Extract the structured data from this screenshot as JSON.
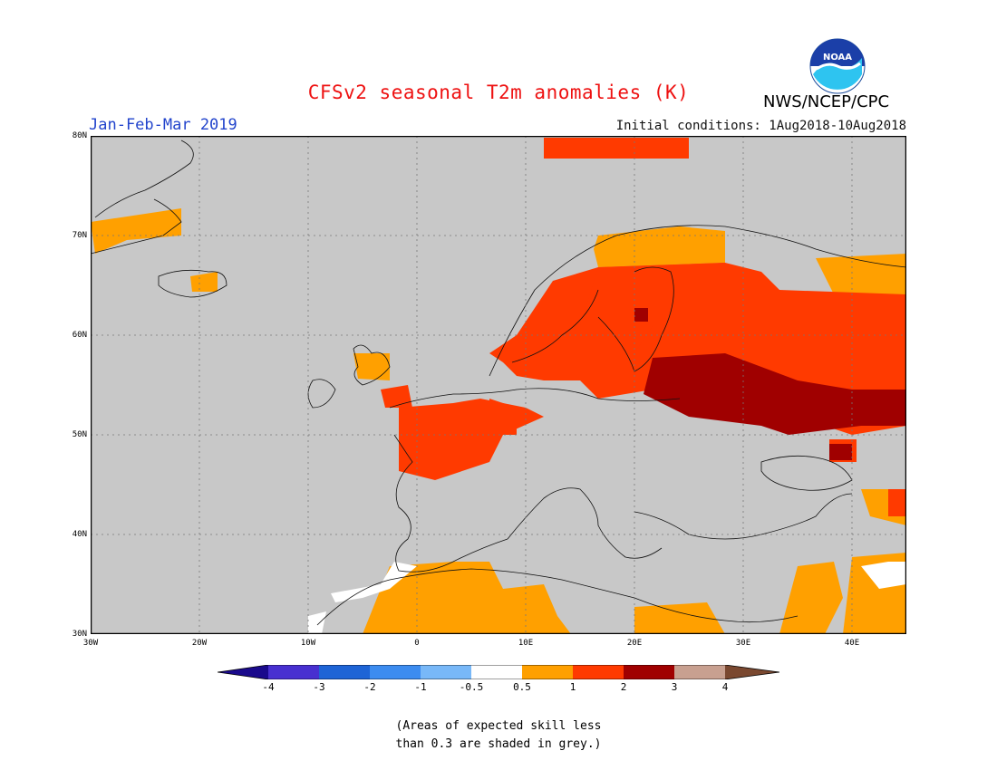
{
  "header": {
    "title": "CFSv2 seasonal T2m anomalies (K)",
    "period": "Jan-Feb-Mar 2019",
    "initial_conditions": "Initial conditions: 1Aug2018-10Aug2018",
    "agency": "NWS/NCEP/CPC",
    "logo_text": "NOAA"
  },
  "map": {
    "lat_labels": [
      "80N",
      "70N",
      "60N",
      "50N",
      "40N",
      "30N"
    ],
    "lon_labels": [
      "30W",
      "20W",
      "10W",
      "0",
      "10E",
      "20E",
      "30E",
      "40E"
    ],
    "background_color": "#c8c8c8",
    "region": "Europe / North Atlantic"
  },
  "colorbar": {
    "labels": [
      "-4",
      "-3",
      "-2",
      "-1",
      "-0.5",
      "0.5",
      "1",
      "2",
      "3",
      "4"
    ],
    "colors": [
      "#1a0a8c",
      "#4830d0",
      "#1e64d6",
      "#3c8cf0",
      "#78b8f8",
      "#ffffff",
      "#ffa000",
      "#ff3a00",
      "#a00000",
      "#c8a090",
      "#7a4830"
    ]
  },
  "footnote": {
    "line1": "(Areas of expected skill less",
    "line2": "than 0.3 are shaded in grey.)"
  }
}
